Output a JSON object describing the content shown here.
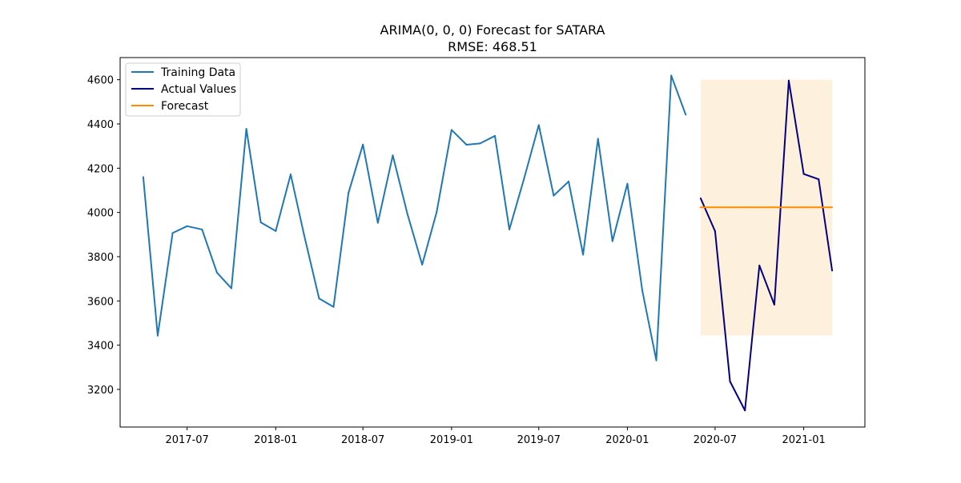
{
  "chart_data": {
    "type": "line",
    "title": "ARIMA(0, 0, 0) Forecast for SATARA",
    "subtitle": "RMSE: 468.51",
    "xlabel": "",
    "ylabel": "",
    "x_axis": {
      "kind": "date",
      "min": "2017-02-12",
      "max": "2021-05-08",
      "ticks": [
        "2017-07",
        "2018-01",
        "2018-07",
        "2019-01",
        "2019-07",
        "2020-01",
        "2020-07",
        "2021-01"
      ]
    },
    "y_axis": {
      "min": 3030,
      "max": 4700,
      "ticks": [
        3200,
        3400,
        3600,
        3800,
        4000,
        4200,
        4400,
        4600
      ]
    },
    "grid": false,
    "legend": {
      "placement": "top-left",
      "entries": [
        "Training Data",
        "Actual Values",
        "Forecast"
      ]
    },
    "series": [
      {
        "name": "Training Data",
        "color": "#1f77b4",
        "points": [
          [
            "2017-04-01",
            4160
          ],
          [
            "2017-05-01",
            3443
          ],
          [
            "2017-06-01",
            3907
          ],
          [
            "2017-07-01",
            3938
          ],
          [
            "2017-08-01",
            3923
          ],
          [
            "2017-09-01",
            3728
          ],
          [
            "2017-10-01",
            3657
          ],
          [
            "2017-11-01",
            4378
          ],
          [
            "2017-12-01",
            3955
          ],
          [
            "2018-01-01",
            3916
          ],
          [
            "2018-02-01",
            4172
          ],
          [
            "2018-03-01",
            3897
          ],
          [
            "2018-04-01",
            3611
          ],
          [
            "2018-05-01",
            3573
          ],
          [
            "2018-06-01",
            4088
          ],
          [
            "2018-07-01",
            4307
          ],
          [
            "2018-08-01",
            3953
          ],
          [
            "2018-09-01",
            4258
          ],
          [
            "2018-10-01",
            3996
          ],
          [
            "2018-11-01",
            3764
          ],
          [
            "2018-12-01",
            4001
          ],
          [
            "2019-01-01",
            4373
          ],
          [
            "2019-02-01",
            4306
          ],
          [
            "2019-03-01",
            4312
          ],
          [
            "2019-04-01",
            4346
          ],
          [
            "2019-05-01",
            3923
          ],
          [
            "2019-06-01",
            4157
          ],
          [
            "2019-07-01",
            4395
          ],
          [
            "2019-08-01",
            4076
          ],
          [
            "2019-09-01",
            4140
          ],
          [
            "2019-10-01",
            3809
          ],
          [
            "2019-11-01",
            4333
          ],
          [
            "2019-12-01",
            3870
          ],
          [
            "2020-01-01",
            4130
          ],
          [
            "2020-02-01",
            3646
          ],
          [
            "2020-03-01",
            3331
          ],
          [
            "2020-04-01",
            4619
          ],
          [
            "2020-05-01",
            4442
          ]
        ]
      },
      {
        "name": "Actual Values",
        "color": "#000080",
        "points": [
          [
            "2020-06-01",
            4064
          ],
          [
            "2020-07-01",
            3915
          ],
          [
            "2020-08-01",
            3236
          ],
          [
            "2020-09-01",
            3105
          ],
          [
            "2020-10-01",
            3760
          ],
          [
            "2020-11-01",
            3583
          ],
          [
            "2020-12-01",
            4596
          ],
          [
            "2021-01-01",
            4174
          ],
          [
            "2021-02-01",
            4150
          ],
          [
            "2021-03-01",
            3737
          ]
        ]
      },
      {
        "name": "Forecast",
        "color": "#ff8c00",
        "points": [
          [
            "2020-06-01",
            4023
          ],
          [
            "2020-07-01",
            4023
          ],
          [
            "2020-08-01",
            4023
          ],
          [
            "2020-09-01",
            4023
          ],
          [
            "2020-10-01",
            4023
          ],
          [
            "2020-11-01",
            4023
          ],
          [
            "2020-12-01",
            4023
          ],
          [
            "2021-01-01",
            4023
          ],
          [
            "2021-02-01",
            4023
          ],
          [
            "2021-03-01",
            4023
          ]
        ]
      }
    ],
    "confidence_band": {
      "x_start": "2020-06-01",
      "x_end": "2021-03-01",
      "lower": 3444,
      "upper": 4600,
      "color": "#fdf0dc"
    }
  }
}
